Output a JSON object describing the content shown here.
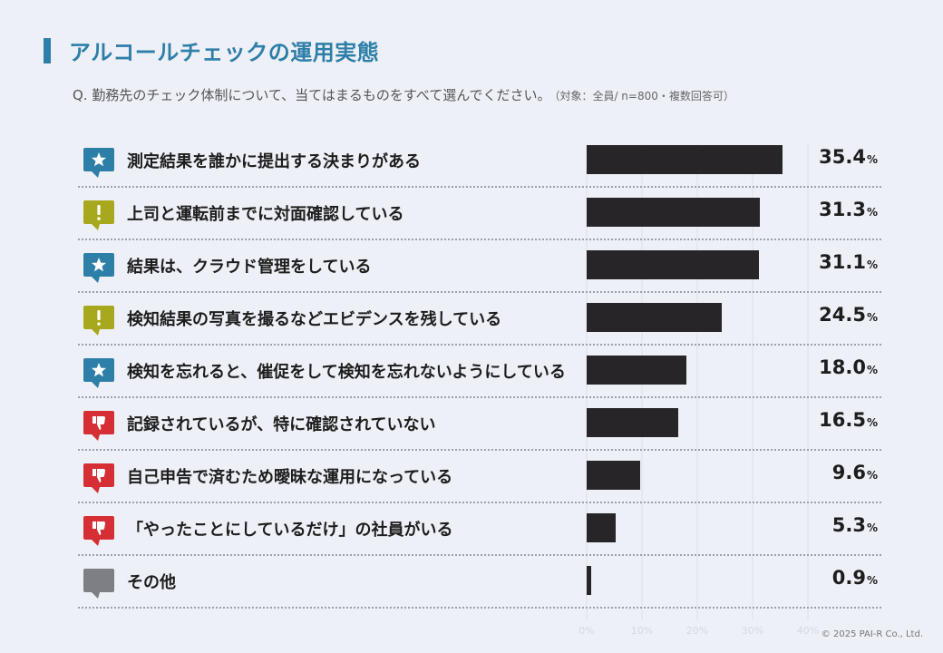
{
  "title": "アルコールチェックの運用実態",
  "question": "Q. 勤務先のチェック体制について、当てはまるものをすべて選んでください。",
  "question_note": "（対象：全員/ n=800・複数回答可）",
  "copyright": "© 2025 PAI-R Co., Ltd.",
  "colors": {
    "accent": "#2e7fa8",
    "bar": "#272528",
    "star_badge": "#2e7fa8",
    "alert_badge": "#a8a81e",
    "thumbs_down_badge": "#d52f35",
    "other_badge": "#7d7f85"
  },
  "chart_data": {
    "type": "bar",
    "orientation": "horizontal",
    "categories": [
      "測定結果を誰かに提出する決まりがある",
      "上司と運転前までに対面確認している",
      "結果は、クラウド管理をしている",
      "検知結果の写真を撮るなどエビデンスを残している",
      "検知を忘れると、催促をして検知を忘れないようにしている",
      "記録されているが、特に確認されていない",
      "自己申告で済むため曖昧な運用になっている",
      "「やったことにしているだけ」の社員がいる",
      "その他"
    ],
    "values": [
      35.4,
      31.3,
      31.1,
      24.5,
      18.0,
      16.5,
      9.6,
      5.3,
      0.9
    ],
    "value_labels": [
      "35.4",
      "31.3",
      "31.1",
      "24.5",
      "18.0",
      "16.5",
      "9.6",
      "5.3",
      "0.9"
    ],
    "unit": "%",
    "icons": [
      "star-icon",
      "exclamation-icon",
      "star-icon",
      "exclamation-icon",
      "star-icon",
      "thumbs-down-icon",
      "thumbs-down-icon",
      "thumbs-down-icon",
      "speech-bubble-icon"
    ],
    "xlim": [
      0,
      40
    ],
    "ticks": [
      "0%",
      "10%",
      "20%",
      "30%",
      "40%"
    ],
    "grid": true
  }
}
